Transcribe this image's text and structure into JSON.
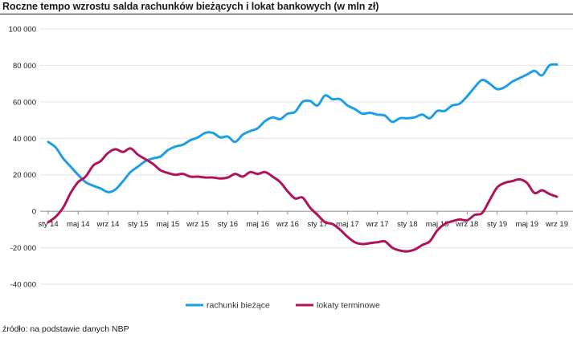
{
  "chart_data": {
    "type": "line",
    "title": "Roczne tempo wzrostu salda rachunków bieżących i lokat bankowych (w mln zł)",
    "x_tick_labels": [
      "sty 14",
      "maj 14",
      "wrz 14",
      "sty 15",
      "maj 15",
      "wrz 15",
      "sty 16",
      "maj 16",
      "wrz 16",
      "sty 17",
      "maj 17",
      "wrz 17",
      "sty 18",
      "maj 18",
      "wrz 18",
      "sty 19",
      "maj 19",
      "wrz 19"
    ],
    "y_tick_labels": [
      "100 000",
      "80 000",
      "60 000",
      "40 000",
      "20 000",
      "0",
      "-20 000",
      "-40 000"
    ],
    "y_ticks": [
      100000,
      80000,
      60000,
      40000,
      20000,
      0,
      -20000,
      -40000
    ],
    "ylim": [
      -40000,
      100000
    ],
    "months_start": "2014-01",
    "grid": "horizontal",
    "legend_position": "bottom",
    "series": [
      {
        "name": "rachunki bieżące",
        "color": "#1f9ee8",
        "values": [
          38000,
          35000,
          29000,
          24500,
          20000,
          16000,
          14000,
          12500,
          10500,
          12000,
          16500,
          21500,
          24500,
          27500,
          29000,
          30000,
          33500,
          35500,
          36500,
          39000,
          40500,
          43000,
          43000,
          40500,
          41000,
          38000,
          42000,
          44000,
          45500,
          49500,
          51500,
          50500,
          53500,
          54500,
          60000,
          60500,
          58000,
          63500,
          61500,
          61500,
          58000,
          56000,
          53500,
          54000,
          53000,
          52500,
          49000,
          51000,
          51000,
          51500,
          53000,
          51000,
          55000,
          55000,
          58000,
          59000,
          63000,
          68000,
          72000,
          70000,
          67000,
          68000,
          71000,
          73000,
          75000,
          77000,
          74500,
          80000,
          80500
        ]
      },
      {
        "name": "lokaty terminowe",
        "color": "#b0135c",
        "values": [
          -6000,
          -3000,
          2000,
          10000,
          16000,
          19000,
          25000,
          27500,
          32000,
          34000,
          32500,
          34500,
          31000,
          28500,
          26000,
          22500,
          21000,
          20000,
          20500,
          19000,
          19000,
          18500,
          18500,
          18000,
          18500,
          20500,
          19000,
          21500,
          20500,
          21500,
          19000,
          16000,
          11000,
          7000,
          7500,
          2000,
          -2000,
          -6000,
          -7000,
          -10000,
          -14000,
          -17000,
          -18000,
          -17500,
          -17000,
          -16500,
          -20000,
          -21500,
          -22000,
          -21000,
          -18500,
          -16500,
          -10500,
          -7000,
          -5500,
          -4500,
          -5000,
          -2000,
          -1000,
          6000,
          13000,
          15500,
          16500,
          17500,
          15500,
          10000,
          11500,
          9500,
          8000
        ]
      }
    ]
  },
  "source_text": "źródło: na podstawie danych NBP"
}
